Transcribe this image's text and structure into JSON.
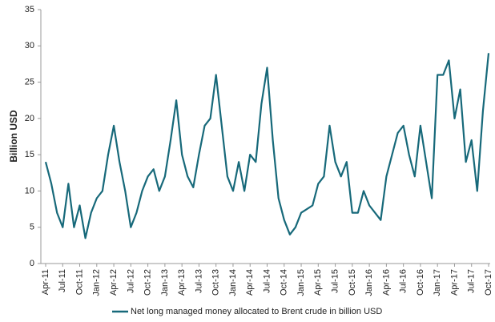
{
  "chart_data": {
    "type": "line",
    "y_label": "Billion USD",
    "categories": [
      "Apr-11",
      null,
      null,
      "Jul-11",
      null,
      null,
      "Oct-11",
      null,
      null,
      "Jan-12",
      null,
      null,
      "Apr-12",
      null,
      null,
      "Jul-12",
      null,
      null,
      "Oct-12",
      null,
      null,
      "Jan-13",
      null,
      null,
      "Apr-13",
      null,
      null,
      "Jul-13",
      null,
      null,
      "Oct-13",
      null,
      null,
      "Jan-14",
      null,
      null,
      "Apr-14",
      null,
      null,
      "Jul-14",
      null,
      null,
      "Oct-14",
      null,
      null,
      "Jan-15",
      null,
      null,
      "Apr-15",
      null,
      null,
      "Jul-15",
      null,
      null,
      "Oct-15",
      null,
      null,
      "Jan-16",
      null,
      null,
      "Apr-16",
      null,
      null,
      "Jul-16",
      null,
      null,
      "Oct-16",
      null,
      null,
      "Jan-17",
      null,
      null,
      "Apr-17",
      null,
      null,
      "Jul-17",
      null,
      null,
      "Oct-17"
    ],
    "series": [
      {
        "name": "Net long managed money allocated to Brent crude in billion USD",
        "color": "#17697a",
        "values": [
          14,
          11,
          7,
          5,
          11,
          5,
          8,
          3.5,
          7,
          9,
          10,
          15,
          19,
          14,
          10,
          5,
          7,
          10,
          12,
          13,
          10,
          12,
          17,
          22.5,
          15,
          12,
          10.5,
          15,
          19,
          20,
          26,
          19,
          12,
          10,
          14,
          10,
          15,
          14,
          22,
          27,
          17,
          9,
          6,
          4,
          5,
          7,
          7.5,
          8,
          11,
          12,
          19,
          14,
          12,
          14,
          7,
          7,
          10,
          8,
          7,
          6,
          12,
          15,
          18,
          19,
          15,
          12,
          19,
          14,
          9,
          26,
          26,
          28,
          20,
          24,
          14,
          17,
          10,
          21,
          29
        ]
      }
    ],
    "ylim": [
      0,
      35
    ],
    "yticks": [
      0,
      5,
      10,
      15,
      20,
      25,
      30,
      35
    ],
    "grid": false
  }
}
